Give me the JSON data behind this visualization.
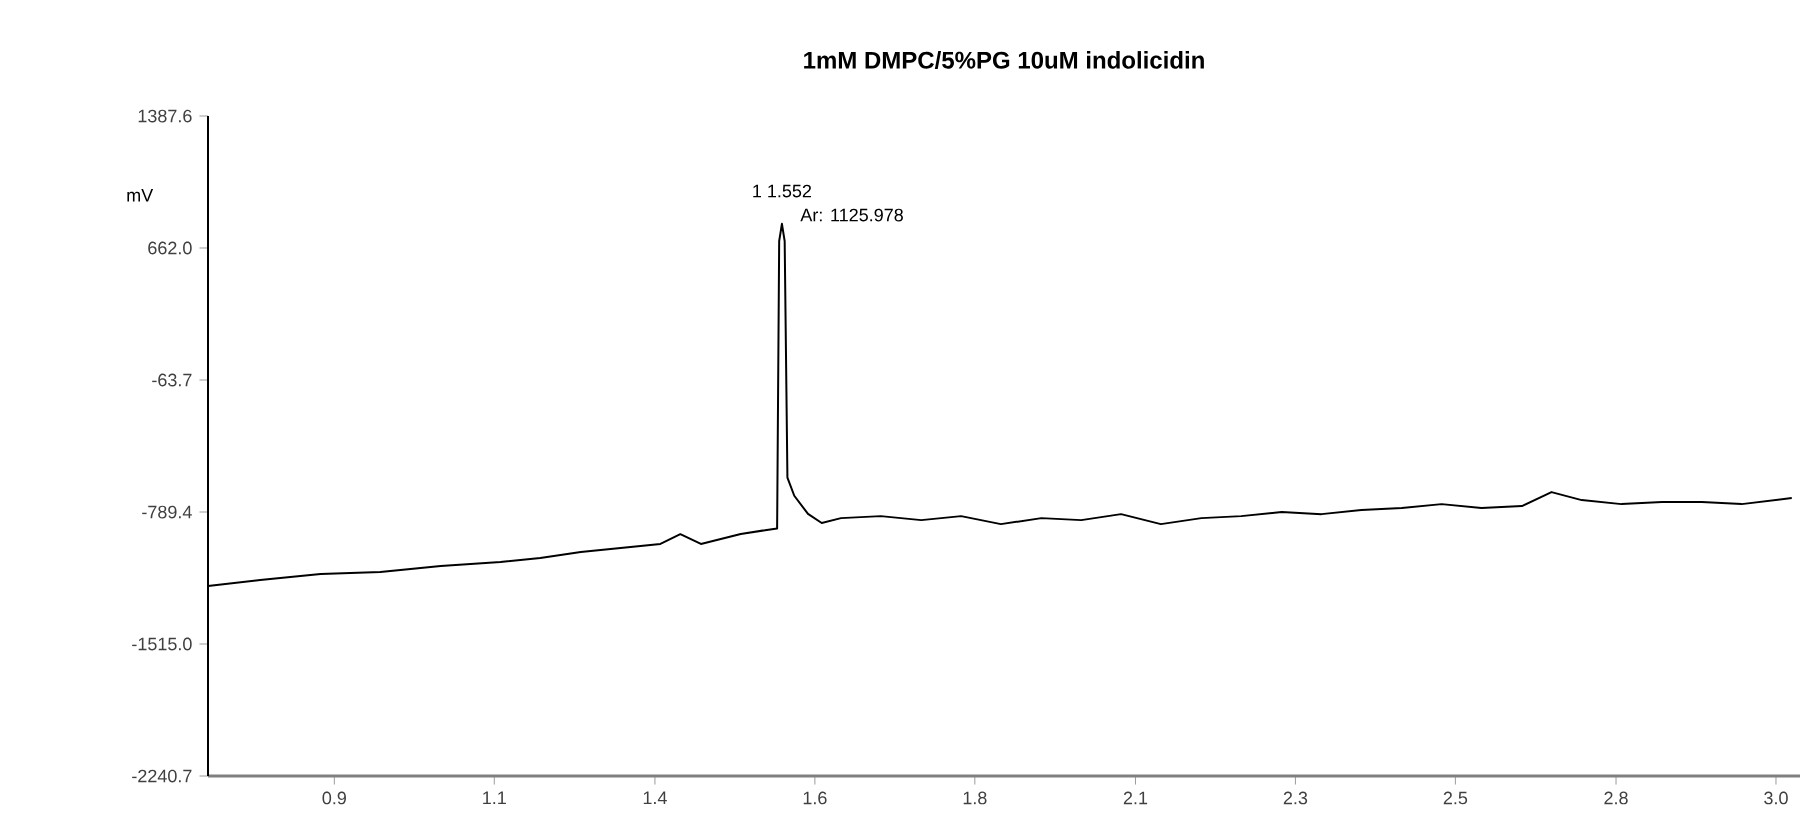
{
  "chart_data": {
    "type": "line",
    "title": "1mM DMPC/5%PG 10uM indolicidin",
    "ylabel": "mV",
    "annotations": [
      {
        "text": "1 1.552",
        "x": 1.552,
        "y": 795
      },
      {
        "text": "Ar: 1125.978",
        "x": 1.552,
        "y": 795
      }
    ],
    "xlim": [
      0.716,
      3.035
    ],
    "ylim": [
      -2240.7,
      1387.6
    ],
    "xticks": [
      {
        "value": 0.9,
        "label": "0.9"
      },
      {
        "value": 1.133,
        "label": "1.1"
      },
      {
        "value": 1.367,
        "label": "1.4"
      },
      {
        "value": 1.6,
        "label": "1.6"
      },
      {
        "value": 1.833,
        "label": "1.8"
      },
      {
        "value": 2.067,
        "label": "2.1"
      },
      {
        "value": 2.3,
        "label": "2.3"
      },
      {
        "value": 2.533,
        "label": "2.5"
      },
      {
        "value": 2.767,
        "label": "2.8"
      },
      {
        "value": 3.0,
        "label": "3.0"
      }
    ],
    "yticks": [
      -2240.7,
      {
        "value": -1515.0,
        "label": "-1515.0"
      },
      -789.4,
      -63.7,
      {
        "value": 662.0,
        "label": "662.0"
      },
      1387.6
    ],
    "grid": false,
    "marker": "none",
    "line_style": "solid",
    "series": [
      {
        "color": "#000000",
        "x": [
          0.716,
          0.792,
          0.88,
          0.967,
          1.055,
          1.142,
          1.2,
          1.259,
          1.317,
          1.375,
          1.404,
          1.434,
          1.492,
          1.53,
          1.545,
          1.548,
          1.552,
          1.556,
          1.56,
          1.57,
          1.59,
          1.61,
          1.638,
          1.696,
          1.755,
          1.813,
          1.871,
          1.93,
          1.988,
          2.046,
          2.104,
          2.163,
          2.221,
          2.28,
          2.338,
          2.396,
          2.455,
          2.513,
          2.571,
          2.63,
          2.673,
          2.717,
          2.775,
          2.834,
          2.892,
          2.95,
          3.023
        ],
        "values": [
          -1196,
          -1163,
          -1130,
          -1119,
          -1086,
          -1064,
          -1042,
          -1009,
          -987,
          -965,
          -911,
          -965,
          -910,
          -888,
          -880,
          700,
          795,
          700,
          -600,
          -700,
          -800,
          -850,
          -823,
          -812,
          -834,
          -812,
          -856,
          -823,
          -834,
          -801,
          -856,
          -823,
          -812,
          -790,
          -801,
          -779,
          -768,
          -746,
          -768,
          -757,
          -680,
          -724,
          -746,
          -735,
          -735,
          -746,
          -713
        ]
      }
    ]
  }
}
